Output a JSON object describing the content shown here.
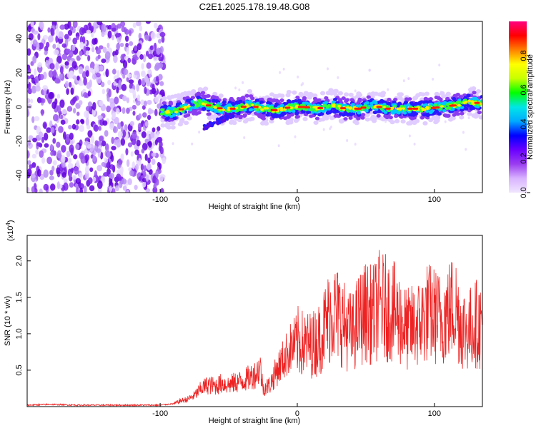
{
  "title": "C2E1.2025.178.19.48.G08",
  "spectrogram": {
    "type": "heatmap",
    "xlabel": "Height of straight line (km)",
    "ylabel": "Frequency (Hz)",
    "xlim": [
      -197,
      135
    ],
    "ylim": [
      -50,
      50
    ],
    "x_ticks": [
      -100,
      0,
      100
    ],
    "y_ticks": [
      40,
      20,
      0,
      -20,
      -40
    ],
    "colorbar": {
      "label": "Normalized spectral amplitude",
      "range": [
        0,
        1
      ],
      "ticks": [
        "0.0",
        "0.2",
        "0.4",
        "0.6",
        "0.8"
      ],
      "tick_values": [
        0,
        0.2,
        0.4,
        0.6,
        0.8
      ],
      "colors": [
        "#f0e6ff",
        "#d9b3ff",
        "#9b3df0",
        "#6a00ff",
        "#0000ff",
        "#00aaff",
        "#00e6e6",
        "#00ff00",
        "#c8ff00",
        "#ffff00",
        "#ff8000",
        "#ff0000",
        "#ff0080"
      ]
    },
    "noise_region_end_x": -97,
    "ridge": [
      {
        "x": -100,
        "y": -3
      },
      {
        "x": -90,
        "y": -3
      },
      {
        "x": -80,
        "y": 0
      },
      {
        "x": -70,
        "y": 3
      },
      {
        "x": -65,
        "y": 1
      },
      {
        "x": -55,
        "y": -1
      },
      {
        "x": -45,
        "y": -1
      },
      {
        "x": -35,
        "y": 1
      },
      {
        "x": -25,
        "y": -1
      },
      {
        "x": -15,
        "y": -2
      },
      {
        "x": -5,
        "y": 0
      },
      {
        "x": 5,
        "y": 0
      },
      {
        "x": 15,
        "y": -1
      },
      {
        "x": 25,
        "y": 1
      },
      {
        "x": 35,
        "y": -1
      },
      {
        "x": 45,
        "y": -1
      },
      {
        "x": 55,
        "y": 1
      },
      {
        "x": 65,
        "y": -1
      },
      {
        "x": 75,
        "y": -1
      },
      {
        "x": 85,
        "y": -1
      },
      {
        "x": 95,
        "y": -1
      },
      {
        "x": 105,
        "y": 0
      },
      {
        "x": 115,
        "y": 1
      },
      {
        "x": 125,
        "y": 3
      },
      {
        "x": 135,
        "y": 2
      }
    ]
  },
  "snr": {
    "type": "line",
    "xlabel": "Height of straight line (km)",
    "ylabel": "SNR (10 * v/v)",
    "y_multiplier": "(x10",
    "y_multiplier_exp": "4",
    "y_multiplier_close": ")",
    "xlim": [
      -197,
      135
    ],
    "ylim": [
      0,
      2.35
    ],
    "x_ticks": [
      -100,
      0,
      100
    ],
    "y_ticks": [
      2.0,
      1.5,
      1.0,
      0.5
    ],
    "y_tick_labels": [
      "2.0",
      "1.5",
      "1.0",
      "0.5"
    ],
    "color": "#ee2222",
    "series": [
      {
        "x": [
          -197,
          -180,
          -160,
          -140,
          -120,
          -100,
          -90,
          -85,
          -80,
          -75,
          -70,
          -65,
          -60,
          -55,
          -50,
          -45,
          -40,
          -35,
          -30,
          -27,
          -25,
          -20,
          -15,
          -10,
          -5,
          0,
          5,
          10,
          15,
          20,
          25,
          30,
          35,
          40,
          45,
          50,
          55,
          60,
          65,
          70,
          75,
          80,
          85,
          90,
          95,
          100,
          105,
          110,
          115,
          120,
          125,
          130,
          135
        ],
        "values": [
          0.02,
          0.03,
          0.02,
          0.02,
          0.02,
          0.02,
          0.04,
          0.08,
          0.1,
          0.15,
          0.25,
          0.3,
          0.28,
          0.32,
          0.3,
          0.33,
          0.35,
          0.4,
          0.45,
          0.55,
          0.25,
          0.3,
          0.5,
          0.65,
          0.8,
          0.9,
          0.85,
          0.85,
          0.9,
          1.1,
          1.3,
          1.25,
          1.1,
          1.0,
          1.2,
          1.3,
          1.25,
          1.4,
          1.35,
          1.3,
          1.2,
          1.05,
          1.1,
          1.15,
          1.3,
          1.25,
          1.2,
          1.3,
          1.4,
          1.1,
          1.05,
          1.15,
          1.1
        ]
      }
    ]
  }
}
